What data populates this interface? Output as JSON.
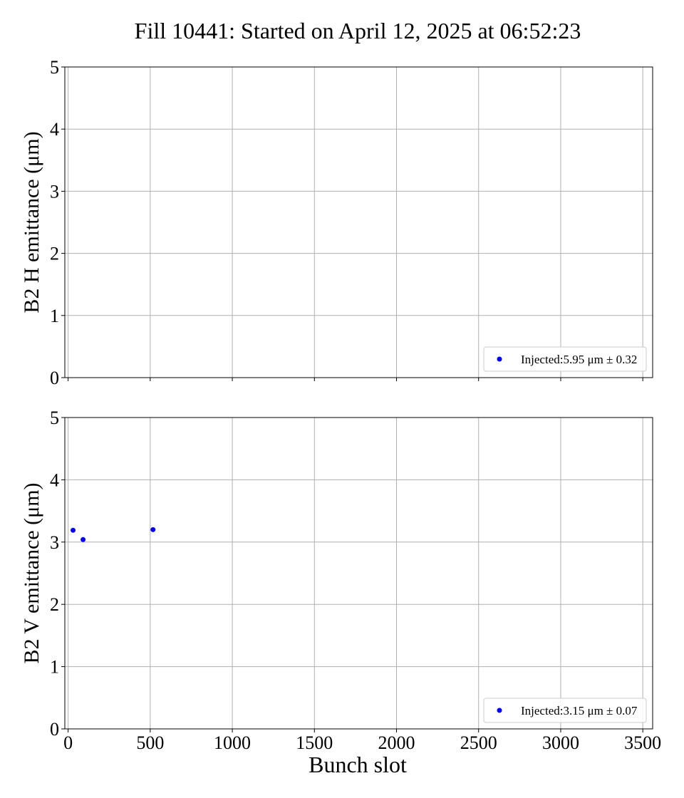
{
  "figure": {
    "title": "Fill 10441: Started on April 12, 2025 at 06:52:23",
    "xlabel": "Bunch slot"
  },
  "chart_data": [
    {
      "type": "scatter",
      "panel": "top",
      "ylabel": "B2 H emittance (μm)",
      "xlabel": "",
      "xlim": [
        -20,
        3560
      ],
      "ylim": [
        0,
        5
      ],
      "xticks": [
        0,
        500,
        1000,
        1500,
        2000,
        2500,
        3000,
        3500
      ],
      "yticks": [
        0,
        1,
        2,
        3,
        4,
        5
      ],
      "grid": true,
      "legend_position": "lower-right",
      "series": [
        {
          "name": "Injected:5.95 μm ± 0.32",
          "color": "#0000ff",
          "points": []
        }
      ]
    },
    {
      "type": "scatter",
      "panel": "bottom",
      "ylabel": "B2 V emittance (μm)",
      "xlabel": "Bunch slot",
      "xlim": [
        -20,
        3560
      ],
      "ylim": [
        0,
        5
      ],
      "xticks": [
        0,
        500,
        1000,
        1500,
        2000,
        2500,
        3000,
        3500
      ],
      "yticks": [
        0,
        1,
        2,
        3,
        4,
        5
      ],
      "grid": true,
      "legend_position": "lower-right",
      "series": [
        {
          "name": "Injected:3.15 μm ± 0.07",
          "color": "#0000ff",
          "points": [
            {
              "x": 30,
              "y": 3.19
            },
            {
              "x": 91,
              "y": 3.04
            },
            {
              "x": 517,
              "y": 3.2
            }
          ]
        }
      ]
    }
  ]
}
